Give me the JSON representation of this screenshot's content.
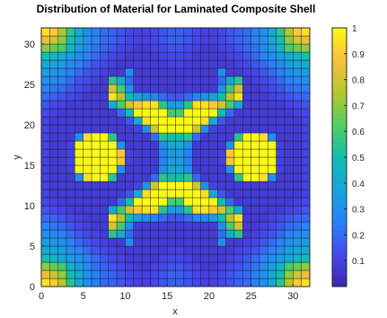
{
  "chart_data": {
    "type": "heatmap",
    "title": "Distribution of Material for Laminated Composite Shell",
    "xlabel": "x",
    "ylabel": "y",
    "xlim": [
      0,
      32
    ],
    "ylim": [
      0,
      32
    ],
    "x_ticks": [
      "0",
      "5",
      "10",
      "15",
      "20",
      "25",
      "30"
    ],
    "y_ticks": [
      "0",
      "5",
      "10",
      "15",
      "20",
      "25",
      "30"
    ],
    "colorbar": {
      "range": [
        0,
        1
      ],
      "ticks": [
        "0.1",
        "0.2",
        "0.3",
        "0.4",
        "0.5",
        "0.6",
        "0.7",
        "0.8",
        "0.9",
        "1"
      ]
    },
    "colormap": "parula",
    "grid": {
      "rows": 32,
      "cols": 32,
      "cell_origin": "lower-left",
      "symmetry": "quarter-symmetric about x=16 and y=16"
    },
    "quadrant_values_lower_left": [
      [
        0.95,
        0.9,
        0.75,
        0.55,
        0.4,
        0.3,
        0.25,
        0.2,
        0.18,
        0.15,
        0.12,
        0.1,
        0.1,
        0.12,
        0.15,
        0.18
      ],
      [
        0.85,
        0.8,
        0.7,
        0.5,
        0.4,
        0.3,
        0.25,
        0.2,
        0.18,
        0.15,
        0.12,
        0.1,
        0.1,
        0.12,
        0.15,
        0.18
      ],
      [
        0.7,
        0.65,
        0.6,
        0.45,
        0.35,
        0.28,
        0.22,
        0.18,
        0.15,
        0.12,
        0.1,
        0.08,
        0.08,
        0.1,
        0.12,
        0.15
      ],
      [
        0.5,
        0.45,
        0.4,
        0.35,
        0.3,
        0.25,
        0.2,
        0.15,
        0.12,
        0.1,
        0.08,
        0.08,
        0.08,
        0.08,
        0.1,
        0.12
      ],
      [
        0.4,
        0.38,
        0.35,
        0.3,
        0.25,
        0.2,
        0.15,
        0.12,
        0.1,
        0.08,
        0.08,
        0.08,
        0.08,
        0.08,
        0.08,
        0.1
      ],
      [
        0.35,
        0.32,
        0.3,
        0.25,
        0.2,
        0.15,
        0.12,
        0.1,
        0.08,
        0.08,
        0.3,
        0.08,
        0.08,
        0.08,
        0.08,
        0.08
      ],
      [
        0.3,
        0.28,
        0.25,
        0.2,
        0.15,
        0.12,
        0.1,
        0.08,
        0.55,
        0.4,
        0.2,
        0.08,
        0.08,
        0.08,
        0.08,
        0.08
      ],
      [
        0.25,
        0.22,
        0.2,
        0.15,
        0.12,
        0.1,
        0.08,
        0.08,
        0.8,
        0.6,
        0.3,
        0.08,
        0.08,
        0.08,
        0.08,
        0.08
      ],
      [
        0.2,
        0.18,
        0.15,
        0.12,
        0.1,
        0.08,
        0.08,
        0.08,
        0.95,
        0.75,
        0.5,
        0.35,
        0.3,
        0.25,
        0.2,
        0.15
      ],
      [
        0.15,
        0.12,
        0.1,
        0.08,
        0.08,
        0.08,
        0.08,
        0.08,
        0.4,
        0.6,
        0.8,
        0.9,
        0.95,
        0.95,
        0.55,
        0.35
      ],
      [
        0.12,
        0.1,
        0.08,
        0.08,
        0.08,
        0.08,
        0.08,
        0.08,
        0.08,
        0.2,
        0.5,
        1.0,
        1.0,
        1.0,
        1.0,
        0.6
      ],
      [
        0.1,
        0.08,
        0.08,
        0.08,
        0.08,
        0.08,
        0.08,
        0.08,
        0.08,
        0.08,
        0.15,
        0.4,
        0.95,
        1.0,
        1.0,
        1.0
      ],
      [
        0.1,
        0.08,
        0.08,
        0.08,
        0.08,
        0.08,
        0.08,
        0.08,
        0.08,
        0.08,
        0.08,
        0.1,
        0.3,
        0.8,
        1.0,
        1.0
      ],
      [
        0.1,
        0.08,
        0.08,
        0.08,
        0.3,
        0.95,
        1.0,
        1.0,
        0.55,
        0.08,
        0.08,
        0.08,
        0.08,
        0.2,
        0.55,
        0.5
      ],
      [
        0.1,
        0.08,
        0.08,
        0.1,
        1.0,
        1.0,
        1.0,
        1.0,
        1.0,
        0.3,
        0.08,
        0.08,
        0.08,
        0.08,
        0.3,
        0.4
      ],
      [
        0.1,
        0.08,
        0.08,
        0.1,
        1.0,
        1.0,
        1.0,
        1.0,
        1.0,
        0.9,
        0.1,
        0.08,
        0.08,
        0.08,
        0.25,
        0.35
      ]
    ]
  }
}
